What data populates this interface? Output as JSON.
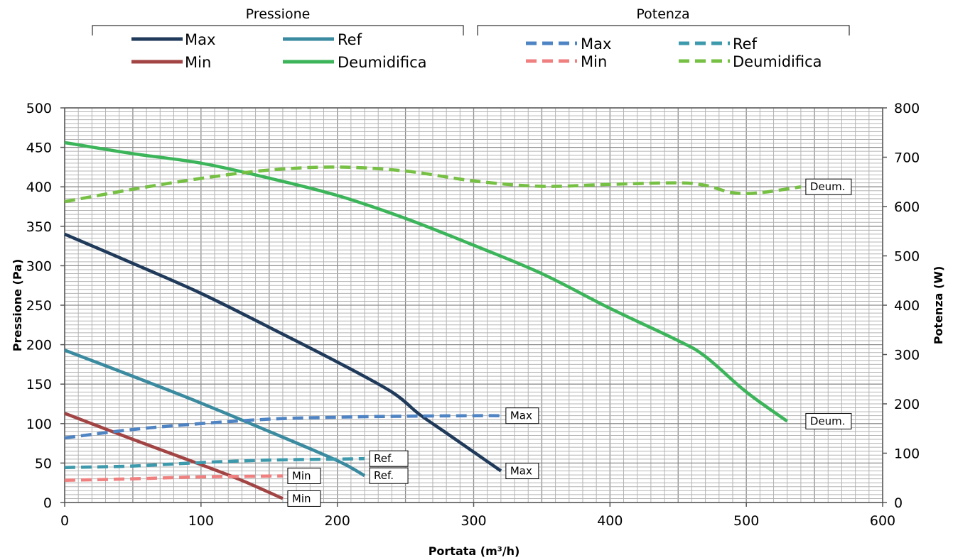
{
  "chart_data": {
    "type": "line",
    "xlabel": "Portata (m³/h)",
    "ylabel": "Pressione (Pa)",
    "y2label": "Potenza (W)",
    "xlim": [
      0,
      600
    ],
    "ylim": [
      0,
      500
    ],
    "y2lim": [
      0,
      800
    ],
    "x_ticks": [
      "0",
      "100",
      "200",
      "300",
      "400",
      "500",
      "600"
    ],
    "y_ticks": [
      "0",
      "50",
      "100",
      "150",
      "200",
      "250",
      "300",
      "350",
      "400",
      "450",
      "500"
    ],
    "y2_ticks": [
      "0",
      "100",
      "200",
      "300",
      "400",
      "500",
      "600",
      "700",
      "800"
    ],
    "grid": true,
    "legend_groups": [
      {
        "title": "Pressione",
        "entries": [
          "Max",
          "Ref",
          "Min",
          "Deumidifica"
        ]
      },
      {
        "title": "Potenza",
        "entries": [
          "Max",
          "Ref",
          "Min",
          "Deumidifica"
        ]
      }
    ],
    "series": [
      {
        "name": "Max",
        "group": "Pressione",
        "axis": "left",
        "style": "solid",
        "color": "#1f3a5a",
        "x": [
          0,
          50,
          100,
          150,
          200,
          240,
          260,
          280,
          300,
          320
        ],
        "y": [
          340,
          303,
          265,
          222,
          178,
          140,
          112,
          88,
          64,
          40
        ]
      },
      {
        "name": "Ref",
        "group": "Pressione",
        "axis": "left",
        "style": "solid",
        "color": "#3a8aa0",
        "x": [
          0,
          50,
          100,
          150,
          200,
          220
        ],
        "y": [
          193,
          160,
          126,
          90,
          53,
          34
        ]
      },
      {
        "name": "Min",
        "group": "Pressione",
        "axis": "left",
        "style": "solid",
        "color": "#a34444",
        "x": [
          0,
          50,
          100,
          130,
          160
        ],
        "y": [
          113,
          80,
          48,
          28,
          5
        ]
      },
      {
        "name": "Deumidifica",
        "group": "Pressione",
        "axis": "left",
        "style": "solid",
        "color": "#3cb55a",
        "x": [
          0,
          50,
          100,
          150,
          200,
          250,
          300,
          350,
          400,
          450,
          470,
          500,
          530
        ],
        "y": [
          456,
          442,
          430,
          411,
          389,
          360,
          326,
          290,
          246,
          205,
          185,
          140,
          103
        ]
      },
      {
        "name": "Max",
        "group": "Potenza",
        "axis": "right",
        "style": "dashed",
        "color": "#4f84c4",
        "x": [
          0,
          50,
          100,
          150,
          200,
          250,
          300,
          320
        ],
        "y": [
          131,
          148,
          160,
          169,
          173,
          175,
          176,
          176
        ]
      },
      {
        "name": "Ref",
        "group": "Potenza",
        "axis": "right",
        "style": "dashed",
        "color": "#3d9aac",
        "x": [
          0,
          50,
          100,
          150,
          200,
          220
        ],
        "y": [
          71,
          74,
          81,
          86,
          88,
          89
        ]
      },
      {
        "name": "Min",
        "group": "Potenza",
        "axis": "right",
        "style": "dashed",
        "color": "#f08080",
        "x": [
          0,
          50,
          100,
          130,
          160
        ],
        "y": [
          45,
          48,
          52,
          53,
          54
        ]
      },
      {
        "name": "Deumidifica",
        "group": "Potenza",
        "axis": "right",
        "style": "dashed",
        "color": "#76c043",
        "x": [
          0,
          50,
          100,
          150,
          200,
          250,
          300,
          350,
          400,
          450,
          470,
          490,
          510,
          540
        ],
        "y": [
          610,
          635,
          657,
          674,
          680,
          672,
          652,
          641,
          645,
          648,
          643,
          628,
          628,
          640
        ]
      }
    ],
    "end_labels": [
      {
        "text": "Deum.",
        "x": 540,
        "y": 640,
        "axis": "right"
      },
      {
        "text": "Deum.",
        "x": 540,
        "y": 103,
        "axis": "left"
      },
      {
        "text": "Max",
        "x": 320,
        "y": 176,
        "axis": "right"
      },
      {
        "text": "Max",
        "x": 320,
        "y": 40,
        "axis": "left"
      },
      {
        "text": "Ref.",
        "x": 220,
        "y": 89,
        "axis": "right"
      },
      {
        "text": "Ref.",
        "x": 220,
        "y": 34,
        "axis": "left"
      },
      {
        "text": "Min",
        "x": 160,
        "y": 54,
        "axis": "right"
      },
      {
        "text": "Min",
        "x": 160,
        "y": 5,
        "axis": "left"
      }
    ]
  }
}
